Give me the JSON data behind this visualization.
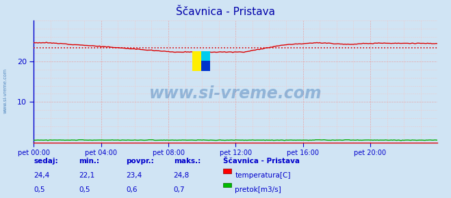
{
  "title": "Ščavnica - Pristava",
  "bg_color": "#d0e4f4",
  "plot_bg_color": "#d0e4f4",
  "grid_color": "#e8a0a0",
  "grid_color_minor": "#f0c8c8",
  "x_min": 0,
  "x_max": 288,
  "y_min": 0,
  "y_max": 30,
  "y_ticks": [
    10,
    20
  ],
  "x_tick_positions": [
    0,
    48,
    96,
    144,
    192,
    240
  ],
  "x_tick_labels": [
    "pet 00:00",
    "pet 04:00",
    "pet 08:00",
    "pet 12:00",
    "pet 16:00",
    "pet 20:00"
  ],
  "temp_color": "#dd0000",
  "flow_color": "#00aa00",
  "temp_avg": 23.4,
  "temp_min": 22.1,
  "temp_max": 24.8,
  "flow_min": 0.5,
  "flow_max": 0.7,
  "watermark": "www.si-vreme.com",
  "watermark_color": "#1a5fa8",
  "axis_color": "#0000cc",
  "text_color": "#0000cc",
  "title_color": "#0000aa",
  "legend_title": "Ščavnica - Pristava",
  "legend_temp_label": "temperatura[C]",
  "legend_flow_label": "pretok[m3/s]",
  "stats_labels": [
    "sedaj:",
    "min.:",
    "povpr.:",
    "maks.:"
  ],
  "stats_temp": [
    "24,4",
    "22,1",
    "23,4",
    "24,8"
  ],
  "stats_flow": [
    "0,5",
    "0,5",
    "0,6",
    "0,7"
  ]
}
